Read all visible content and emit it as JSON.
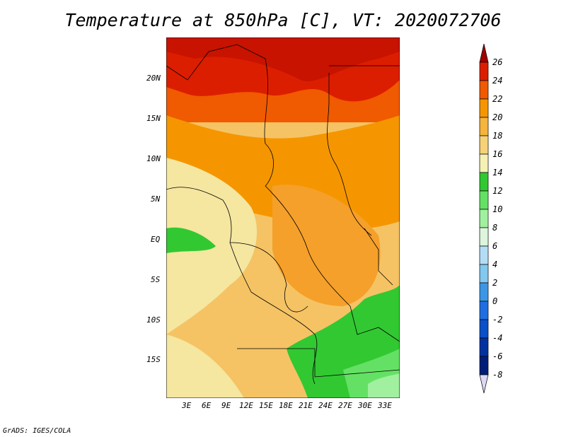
{
  "title": "Temperature at 850hPa [C], VT: 2020072706",
  "credit": "GrADS: IGES/COLA",
  "map": {
    "lat_ticks": [
      "20N",
      "15N",
      "10N",
      "5N",
      "EQ",
      "5S",
      "10S",
      "15S"
    ],
    "lon_ticks": [
      "3E",
      "6E",
      "9E",
      "12E",
      "15E",
      "18E",
      "21E",
      "24E",
      "27E",
      "30E",
      "33E"
    ]
  },
  "colorbar": {
    "labels": [
      "26",
      "24",
      "22",
      "20",
      "18",
      "16",
      "14",
      "12",
      "10",
      "8",
      "6",
      "4",
      "2",
      "0",
      "-2",
      "-4",
      "-6",
      "-8"
    ],
    "colors": [
      "#a00000",
      "#dc1e00",
      "#f05a00",
      "#f59600",
      "#f5b43c",
      "#f5d278",
      "#f5f0b4",
      "#32c832",
      "#64e164",
      "#a0f0a0",
      "#dcf5dc",
      "#b4dcf5",
      "#82c8f0",
      "#3c96e6",
      "#1e6ee1",
      "#0a50c8",
      "#0032a0",
      "#001e78",
      "#000050"
    ]
  }
}
